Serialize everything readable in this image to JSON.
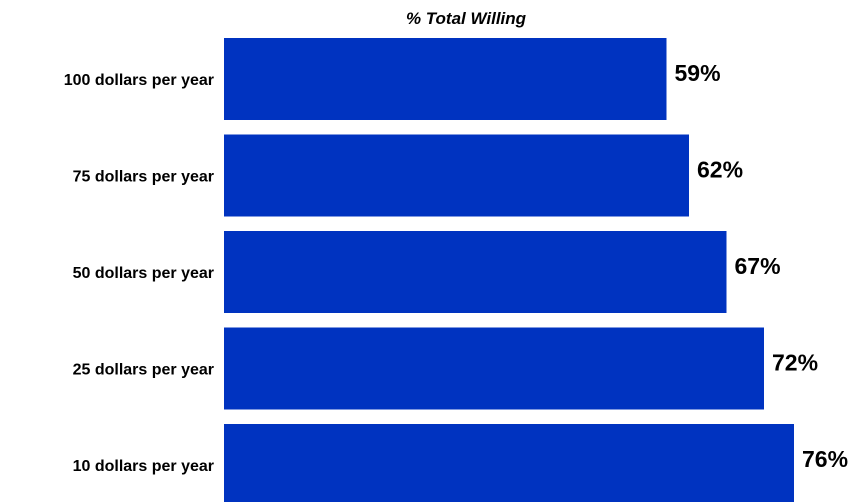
{
  "chart_data": {
    "type": "bar",
    "orientation": "horizontal",
    "title": "% Total Willing",
    "categories": [
      "100 dollars per year",
      "75 dollars per year",
      "50 dollars per year",
      "25 dollars per year",
      "10 dollars per year"
    ],
    "values": [
      59,
      62,
      67,
      72,
      76
    ],
    "value_labels": [
      "59%",
      "62%",
      "67%",
      "72%",
      "76%"
    ],
    "xlim": [
      0,
      100
    ],
    "grid": false,
    "legend": "none",
    "bar_color": "#0033C0"
  }
}
